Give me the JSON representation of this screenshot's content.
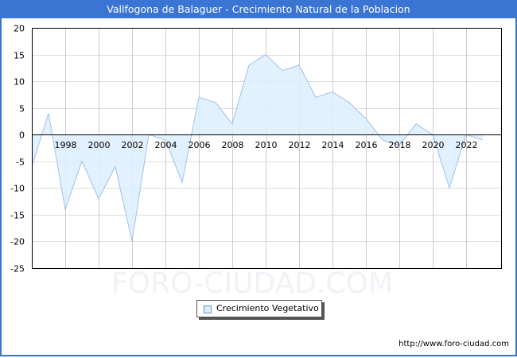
{
  "title": "Vallfogona de Balaguer - Crecimiento Natural de la Poblacion",
  "legend": {
    "label": "Crecimiento Vegetativo"
  },
  "watermark": "FORO-CIUDAD.COM",
  "footer": {
    "url": "http://www.foro-ciudad.com"
  },
  "colors": {
    "title_bg": "#3a75d4",
    "area_fill": "#ddeeff",
    "line": "#a0c0ea",
    "grid": "#dddddd"
  },
  "chart_data": {
    "type": "area",
    "title": "Vallfogona de Balaguer - Crecimiento Natural de la Poblacion",
    "xlabel": "",
    "ylabel": "",
    "ylim": [
      -25,
      20
    ],
    "yticks": [
      20,
      15,
      10,
      5,
      0,
      -5,
      -10,
      -15,
      -20,
      -25
    ],
    "xtick_labels": [
      "1998",
      "2000",
      "2002",
      "2004",
      "2006",
      "2008",
      "2010",
      "2012",
      "2014",
      "2016",
      "2018",
      "2020",
      "2022"
    ],
    "grid": true,
    "legend_position": "bottom",
    "x": [
      1996,
      1997,
      1998,
      1999,
      2000,
      2001,
      2002,
      2003,
      2004,
      2005,
      2006,
      2007,
      2008,
      2009,
      2010,
      2011,
      2012,
      2013,
      2014,
      2015,
      2016,
      2017,
      2018,
      2019,
      2020,
      2021,
      2022,
      2023
    ],
    "series": [
      {
        "name": "Crecimiento Vegetativo",
        "values": [
          -6,
          4,
          -14,
          -5,
          -12,
          -6,
          -20,
          0,
          -1,
          -9,
          7,
          6,
          2,
          13,
          15,
          12,
          13,
          7,
          8,
          6,
          3,
          -1,
          -2,
          2,
          0,
          -10,
          0,
          -1
        ]
      }
    ]
  }
}
